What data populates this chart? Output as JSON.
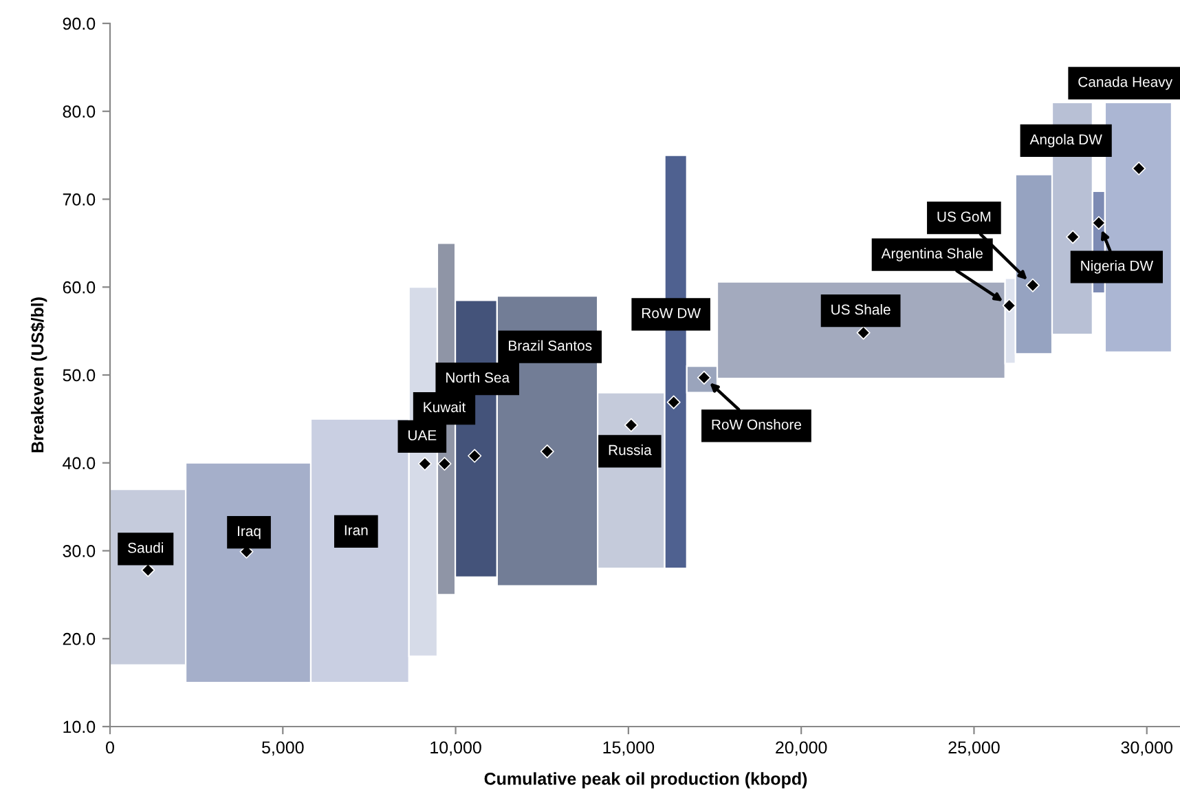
{
  "chart_data": {
    "type": "histogram",
    "xlabel": "Cumulative peak oil production (kbopd)",
    "ylabel": "Breakeven (US$/bl)",
    "bins": [
      0,
      2190,
      5810,
      8650,
      9470,
      9990,
      11200,
      14110,
      16050,
      16690,
      17570,
      25900,
      26200,
      27260,
      28430,
      28790,
      30720
    ],
    "base": [
      17,
      15,
      15,
      18,
      25,
      27,
      26,
      28,
      28,
      48,
      49.6,
      51.3,
      52.4,
      54.6,
      59.3,
      52.6
    ],
    "values": [
      20,
      25,
      30,
      42,
      40,
      31.5,
      33,
      20,
      47,
      3,
      11,
      9.7,
      20.4,
      26.4,
      11.6,
      28.4
    ],
    "colors": [
      "#c5cbdc",
      "#a5afca",
      "#c9cfe2",
      "#d6dbe8",
      "#8f95a6",
      "#44537a",
      "#727d96",
      "#c5cbdb",
      "#4f6190",
      "#9aa4bc",
      "#a3aabe",
      "#dde2ee",
      "#96a3c1",
      "#b8c0d5",
      "#7d8bb4",
      "#abb6d3"
    ],
    "series": [
      {
        "type": "scatter",
        "color": "#000000",
        "marker": "diamond",
        "x": [
          1100,
          3950,
          9110,
          9680,
          10550,
          12650,
          15080,
          16310,
          17190,
          21800,
          26020,
          26700,
          27860,
          28610,
          29770
        ],
        "values": [
          27.8,
          29.9,
          39.9,
          39.9,
          40.8,
          41.3,
          44.3,
          46.9,
          49.7,
          54.8,
          57.9,
          60.2,
          65.7,
          67.3,
          73.5
        ]
      }
    ],
    "annotations": [
      {
        "text": "Saudi",
        "x": 1030,
        "y": 30.2
      },
      {
        "text": "Iraq",
        "x": 4020,
        "y": 32.1
      },
      {
        "text": "Iran",
        "x": 7120,
        "y": 32.2
      },
      {
        "text": "UAE",
        "x": 9030,
        "y": 43.0
      },
      {
        "text": "Kuwait",
        "x": 9670,
        "y": 46.2
      },
      "North Sea",
      "Brazil Santos",
      "Russia",
      {
        "text": "RoW DW",
        "x": 16230,
        "y": 56.9
      },
      {
        "text": "RoW Onshore",
        "x": 17190,
        "y": 49.7
      },
      "US Shale",
      {
        "text": "Argentina Shale",
        "x": 26020,
        "y": 57.9
      },
      {
        "text": "US GoM",
        "x": 26700,
        "y": 60.2
      },
      "Angola DW",
      {
        "text": "Nigeria DW",
        "x": 28610,
        "y": 67.3
      },
      "Canada Heavy"
    ],
    "xlim": [
      0,
      31000
    ],
    "ylim": [
      10,
      90
    ],
    "xticks": [
      0,
      {
        "value": 5000,
        "label": "5,000"
      },
      {
        "value": 10000,
        "label": "10,000"
      },
      {
        "value": 15000,
        "label": "15,000"
      },
      {
        "value": 20000,
        "label": "20,000"
      },
      {
        "value": 25000,
        "label": "25,000"
      },
      {
        "value": 30000,
        "label": "30,000"
      }
    ],
    "yticks": [
      {
        "value": 10,
        "label": "10.0"
      },
      {
        "value": 20,
        "label": "20.0"
      },
      {
        "value": 30,
        "label": "30.0"
      },
      {
        "value": 40,
        "label": "40.0"
      },
      {
        "value": 50,
        "label": "50.0"
      },
      {
        "value": 60,
        "label": "60.0"
      },
      {
        "value": 70,
        "label": "70.0"
      },
      {
        "value": 80,
        "label": "80.0"
      },
      {
        "value": 90,
        "label": "90.0"
      }
    ],
    "grid": false,
    "legend": false
  }
}
